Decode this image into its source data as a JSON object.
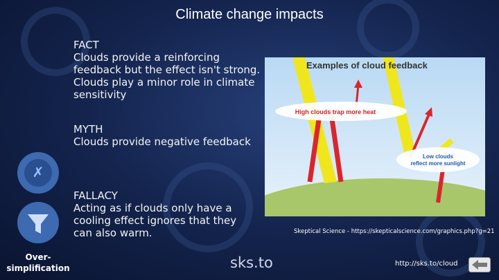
{
  "header": {
    "title": "Climate change impacts"
  },
  "sections": [
    {
      "heading": "FACT",
      "text": "Clouds provide a reinforcing feedback but the effect isn't strong. Clouds play a minor role in climate sensitivity"
    },
    {
      "heading": "MYTH",
      "text": "Clouds provide negative feedback"
    },
    {
      "heading": "FALLACY",
      "text": "Acting as if clouds only have a cooling effect ignores that they can also warm."
    }
  ],
  "figure": {
    "title": "Examples of cloud feedback",
    "high_label": "High clouds trap more heat",
    "low_label": [
      "Low clouds",
      "reflect more sunlight"
    ],
    "caption": "Skeptical Science - https://skepticalscience.com/graphics.php?g=21"
  },
  "fallacy_label": [
    "Over-",
    "simplification"
  ],
  "footer": {
    "logo": "sks.to",
    "link": "http://sks.to/cloud"
  }
}
